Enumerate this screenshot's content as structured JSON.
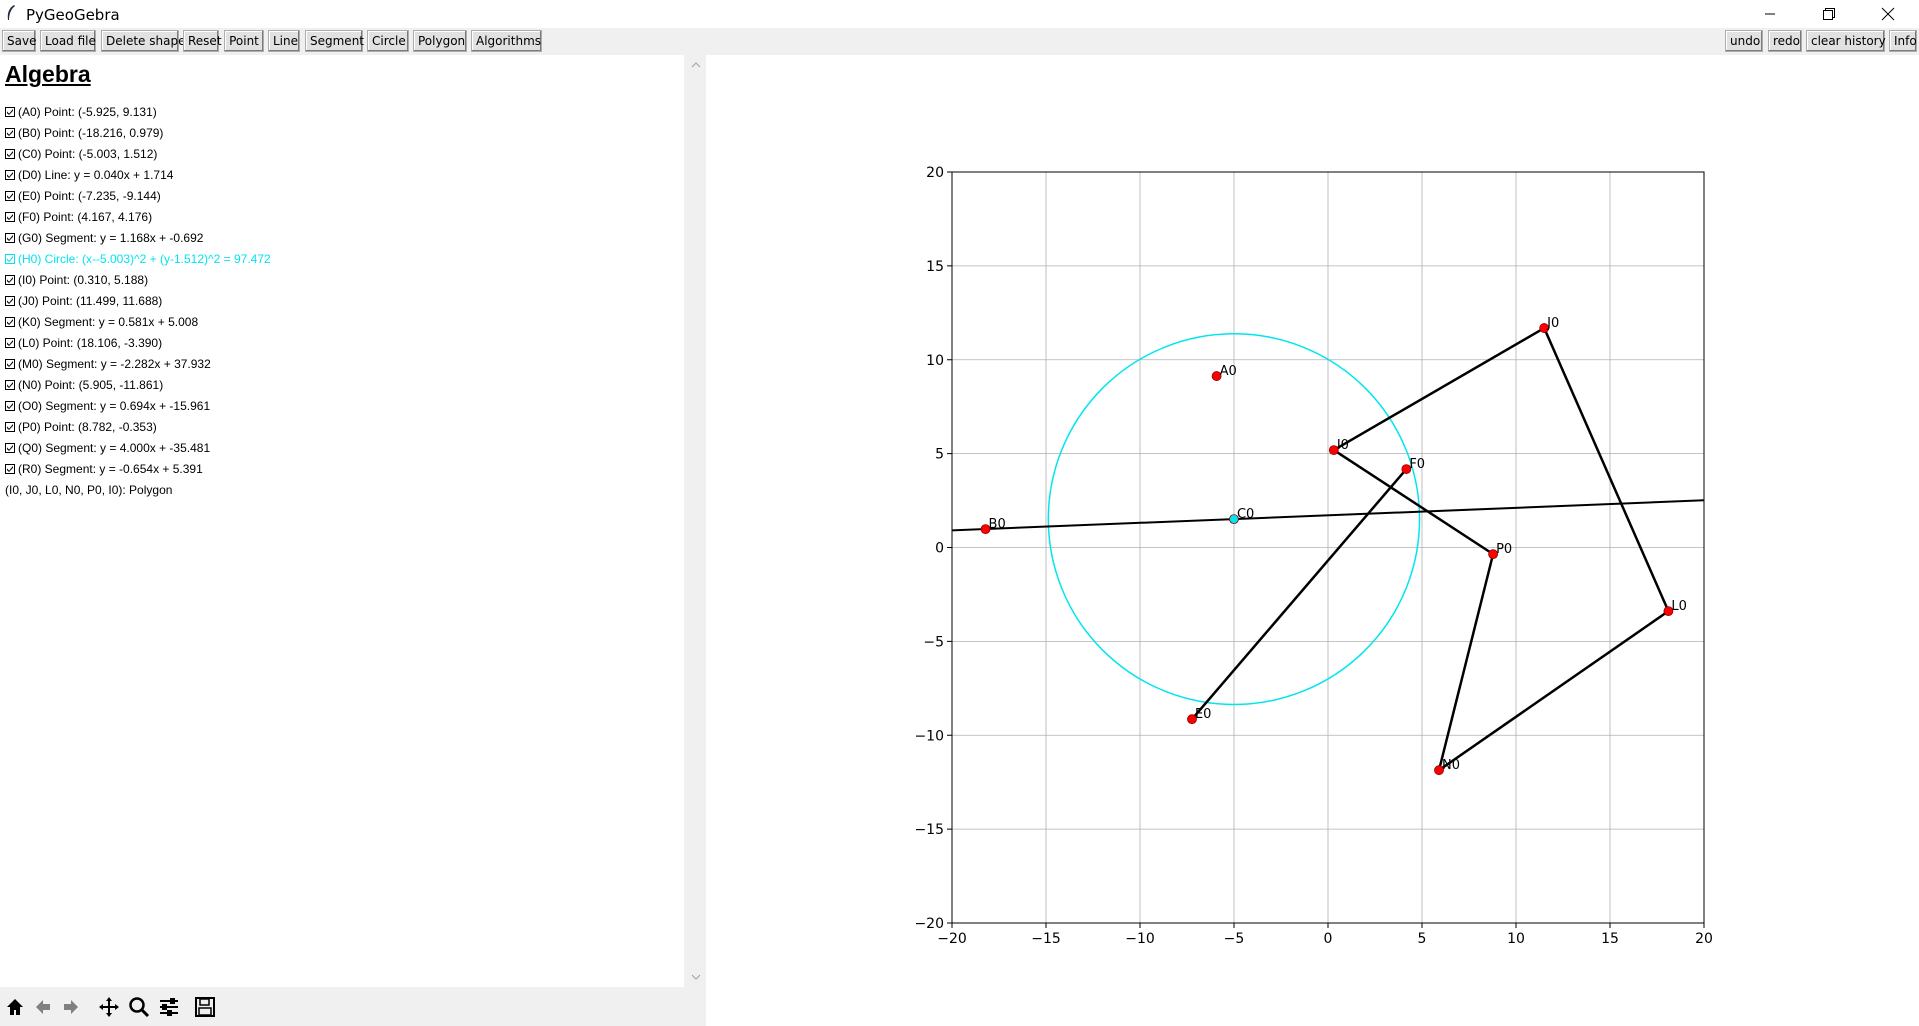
{
  "window": {
    "title": "PyGeoGebra"
  },
  "toolbar": {
    "left": [
      "Save",
      "Load file",
      "Delete shape",
      "Reset",
      "Point",
      "Line",
      "Segment",
      "Circle",
      "Polygon",
      "Algorithms"
    ],
    "right": [
      "undo",
      "redo",
      "clear history",
      "Info"
    ]
  },
  "algebra": {
    "title": "Algebra",
    "items": [
      {
        "text": "(A0) Point: (-5.925, 9.131)",
        "checked": true
      },
      {
        "text": "(B0) Point: (-18.216, 0.979)",
        "checked": true
      },
      {
        "text": "(C0) Point: (-5.003, 1.512)",
        "checked": true
      },
      {
        "text": "(D0) Line: y = 0.040x + 1.714",
        "checked": true
      },
      {
        "text": "(E0) Point: (-7.235, -9.144)",
        "checked": true
      },
      {
        "text": "(F0) Point: (4.167, 4.176)",
        "checked": true
      },
      {
        "text": "(G0) Segment: y = 1.168x + -0.692",
        "checked": true
      },
      {
        "text": "(H0) Circle: (x--5.003)^2 + (y-1.512)^2 = 97.472",
        "checked": true,
        "highlight": "#00e5ee"
      },
      {
        "text": "(I0) Point: (0.310, 5.188)",
        "checked": true
      },
      {
        "text": "(J0) Point: (11.499, 11.688)",
        "checked": true
      },
      {
        "text": "(K0) Segment: y = 0.581x + 5.008",
        "checked": true
      },
      {
        "text": "(L0) Point: (18.106, -3.390)",
        "checked": true
      },
      {
        "text": "(M0) Segment: y = -2.282x + 37.932",
        "checked": true
      },
      {
        "text": "(N0) Point: (5.905, -11.861)",
        "checked": true
      },
      {
        "text": "(O0) Segment: y = 0.694x + -15.961",
        "checked": true
      },
      {
        "text": "(P0) Point: (8.782, -0.353)",
        "checked": true
      },
      {
        "text": "(Q0) Segment: y = 4.000x + -35.481",
        "checked": true
      },
      {
        "text": "(R0) Segment: y = -0.654x + 5.391",
        "checked": true
      },
      {
        "text": "(I0, J0, L0, N0, P0, I0): Polygon",
        "checked": false
      }
    ]
  },
  "navigation_toolbar": [
    "home-icon",
    "back-icon",
    "forward-icon",
    "pan-icon",
    "zoom-icon",
    "configure-subplots-icon",
    "save-figure-icon"
  ],
  "chart_data": {
    "type": "scatter",
    "title": "",
    "xlabel": "",
    "ylabel": "",
    "xlim": [
      -20,
      20
    ],
    "ylim": [
      -20,
      20
    ],
    "xticks": [
      -20,
      -15,
      -10,
      -5,
      0,
      5,
      10,
      15,
      20
    ],
    "yticks": [
      -20,
      -15,
      -10,
      -5,
      0,
      5,
      10,
      15,
      20
    ],
    "grid": true,
    "points": [
      {
        "name": "A0",
        "x": -5.925,
        "y": 9.131,
        "color": "#ff0000"
      },
      {
        "name": "B0",
        "x": -18.216,
        "y": 0.979,
        "color": "#ff0000"
      },
      {
        "name": "C0",
        "x": -5.003,
        "y": 1.512,
        "color": "#00e5ee"
      },
      {
        "name": "E0",
        "x": -7.235,
        "y": -9.144,
        "color": "#ff0000"
      },
      {
        "name": "F0",
        "x": 4.167,
        "y": 4.176,
        "color": "#ff0000"
      },
      {
        "name": "I0",
        "x": 0.31,
        "y": 5.188,
        "color": "#ff0000"
      },
      {
        "name": "J0",
        "x": 11.499,
        "y": 11.688,
        "color": "#ff0000"
      },
      {
        "name": "L0",
        "x": 18.106,
        "y": -3.39,
        "color": "#ff0000"
      },
      {
        "name": "N0",
        "x": 5.905,
        "y": -11.861,
        "color": "#ff0000"
      },
      {
        "name": "P0",
        "x": 8.782,
        "y": -0.353,
        "color": "#ff0000"
      }
    ],
    "lines": [
      {
        "name": "D0",
        "slope": 0.04,
        "intercept": 1.714,
        "color": "#000000"
      }
    ],
    "segments": [
      {
        "name": "G0",
        "from": [
          -7.235,
          -9.144
        ],
        "to": [
          4.167,
          4.176
        ]
      },
      {
        "name": "K0",
        "from": [
          0.31,
          5.188
        ],
        "to": [
          11.499,
          11.688
        ]
      },
      {
        "name": "M0",
        "from": [
          11.499,
          11.688
        ],
        "to": [
          18.106,
          -3.39
        ]
      },
      {
        "name": "O0",
        "from": [
          18.106,
          -3.39
        ],
        "to": [
          5.905,
          -11.861
        ]
      },
      {
        "name": "Q0",
        "from": [
          5.905,
          -11.861
        ],
        "to": [
          8.782,
          -0.353
        ]
      },
      {
        "name": "R0",
        "from": [
          8.782,
          -0.353
        ],
        "to": [
          0.31,
          5.188
        ]
      }
    ],
    "circles": [
      {
        "name": "H0",
        "center": [
          -5.003,
          1.512
        ],
        "radius_squared": 97.472,
        "color": "#00e5ee"
      }
    ]
  }
}
